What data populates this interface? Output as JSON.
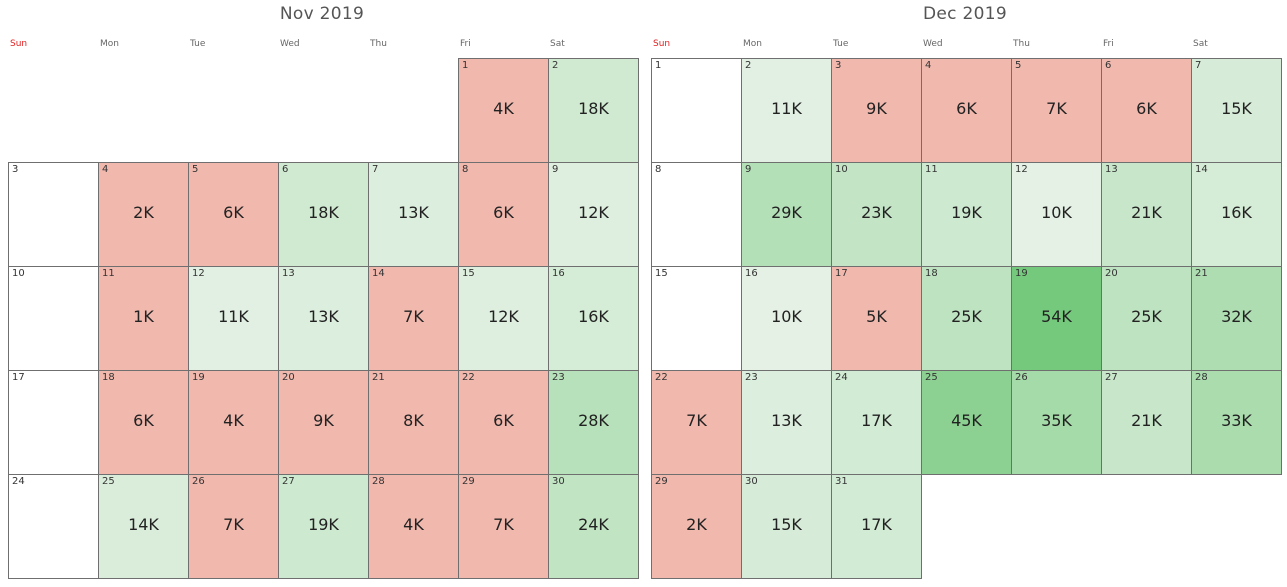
{
  "months": [
    {
      "title": "Nov 2019",
      "first_weekday": 5,
      "days": 30,
      "values": [
        4,
        18,
        null,
        2,
        6,
        18,
        13,
        6,
        12,
        null,
        1,
        11,
        13,
        7,
        12,
        16,
        null,
        6,
        4,
        9,
        8,
        6,
        28,
        null,
        14,
        7,
        19,
        4,
        7,
        24
      ],
      "labels": [
        "4K",
        "18K",
        "",
        "2K",
        "6K",
        "18K",
        "13K",
        "6K",
        "12K",
        "",
        "1K",
        "11K",
        "13K",
        "7K",
        "12K",
        "16K",
        "",
        "6K",
        "4K",
        "9K",
        "8K",
        "6K",
        "28K",
        "",
        "14K",
        "7K",
        "19K",
        "4K",
        "7K",
        "24K"
      ]
    },
    {
      "title": "Dec 2019",
      "first_weekday": 0,
      "days": 31,
      "values": [
        null,
        11,
        9,
        6,
        7,
        6,
        15,
        null,
        29,
        23,
        19,
        10,
        21,
        16,
        null,
        10,
        5,
        25,
        54,
        25,
        32,
        7,
        13,
        17,
        45,
        35,
        21,
        33,
        2,
        15,
        17
      ],
      "labels": [
        "",
        "11K",
        "9K",
        "6K",
        "7K",
        "6K",
        "15K",
        "",
        "29K",
        "23K",
        "19K",
        "10K",
        "21K",
        "16K",
        "",
        "10K",
        "5K",
        "25K",
        "54K",
        "25K",
        "32K",
        "7K",
        "13K",
        "17K",
        "45K",
        "35K",
        "21K",
        "33K",
        "2K",
        "15K",
        "17K"
      ]
    }
  ],
  "weekdays": [
    "Sun",
    "Mon",
    "Tue",
    "Wed",
    "Thu",
    "Fri",
    "Sat"
  ],
  "chart_data": {
    "type": "heatmap",
    "months": [
      "Nov 2019",
      "Dec 2019"
    ],
    "weekdays": [
      "Sun",
      "Mon",
      "Tue",
      "Wed",
      "Thu",
      "Fri",
      "Sat"
    ],
    "series": [
      {
        "month": "Nov 2019",
        "day_values": [
          4,
          18,
          null,
          2,
          6,
          18,
          13,
          6,
          12,
          null,
          1,
          11,
          13,
          7,
          12,
          16,
          null,
          6,
          4,
          9,
          8,
          6,
          28,
          null,
          14,
          7,
          19,
          4,
          7,
          24
        ]
      },
      {
        "month": "Dec 2019",
        "day_values": [
          null,
          11,
          9,
          6,
          7,
          6,
          15,
          null,
          29,
          23,
          19,
          10,
          21,
          16,
          null,
          10,
          5,
          25,
          54,
          25,
          32,
          7,
          13,
          17,
          45,
          35,
          21,
          33,
          2,
          15,
          17
        ]
      }
    ],
    "unit": "K",
    "color_scale": {
      "low": "#f1b8ad",
      "threshold": 10,
      "high_min": "#e4f1e4",
      "high_max": "#75c97d"
    }
  }
}
